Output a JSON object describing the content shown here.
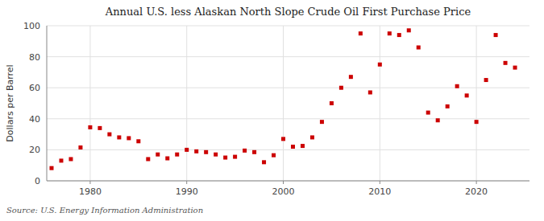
{
  "chart_data": {
    "type": "scatter",
    "title": "Annual U.S. less Alaskan North Slope Crude Oil First Purchase Price",
    "y_label": "Dollars per Barrel",
    "source": "Source: U.S. Energy Information Administration",
    "x": [
      1976,
      1977,
      1978,
      1979,
      1980,
      1981,
      1982,
      1983,
      1984,
      1985,
      1986,
      1987,
      1988,
      1989,
      1990,
      1991,
      1992,
      1993,
      1994,
      1995,
      1996,
      1997,
      1998,
      1999,
      2000,
      2001,
      2002,
      2003,
      2004,
      2005,
      2006,
      2007,
      2008,
      2009,
      2010,
      2011,
      2012,
      2013,
      2014,
      2015,
      2016,
      2017,
      2018,
      2019,
      2020,
      2021,
      2022,
      2023,
      2024
    ],
    "values": [
      8.2,
      13.0,
      14.0,
      21.5,
      34.5,
      34.0,
      30.0,
      28.0,
      27.5,
      25.5,
      14.0,
      17.0,
      14.5,
      17.0,
      20.0,
      19.0,
      18.5,
      17.0,
      15.0,
      15.5,
      19.5,
      18.5,
      12.0,
      16.5,
      27.0,
      22.0,
      22.5,
      28.0,
      38.0,
      50.0,
      60.0,
      67.0,
      95.0,
      57.0,
      75.0,
      95.0,
      94.0,
      97.0,
      86.0,
      44.0,
      39.0,
      48.0,
      61.0,
      55.0,
      38.0,
      65.0,
      94.0,
      76.0,
      73.0
    ],
    "color": "#cc0000",
    "marker": "square",
    "xlim": [
      1975.5,
      2025.5
    ],
    "xticks": [
      1980,
      1990,
      2000,
      2010,
      2020
    ],
    "ylim": [
      0,
      100
    ],
    "yticks": [
      0,
      20,
      40,
      60,
      80,
      100
    ],
    "grid": true
  }
}
